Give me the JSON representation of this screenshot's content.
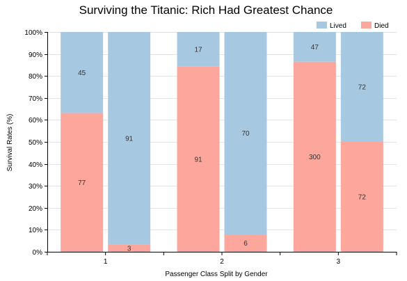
{
  "chart_data": {
    "type": "bar",
    "stacked": true,
    "normalized": true,
    "title": "Surviving the Titanic: Rich Had Greatest Chance",
    "xlabel": "Passenger Class Split by Gender",
    "ylabel": "Survival Rates (%)",
    "ylim": [
      0,
      100
    ],
    "y_ticks": [
      "0%",
      "10%",
      "20%",
      "30%",
      "40%",
      "50%",
      "60%",
      "70%",
      "80%",
      "90%",
      "100%"
    ],
    "grid": true,
    "legend_position": "top-right",
    "categories": [
      "1",
      "2",
      "3"
    ],
    "series": [
      {
        "name": "Lived",
        "color": "#a6c8e0"
      },
      {
        "name": "Died",
        "color": "#fca69c"
      }
    ],
    "groups": [
      {
        "category": "1",
        "bars": [
          {
            "died": 77,
            "lived": 45
          },
          {
            "died": 3,
            "lived": 91
          }
        ]
      },
      {
        "category": "2",
        "bars": [
          {
            "died": 91,
            "lived": 17
          },
          {
            "died": 6,
            "lived": 70
          }
        ]
      },
      {
        "category": "3",
        "bars": [
          {
            "died": 300,
            "lived": 47
          },
          {
            "died": 72,
            "lived": 72
          }
        ]
      }
    ]
  }
}
